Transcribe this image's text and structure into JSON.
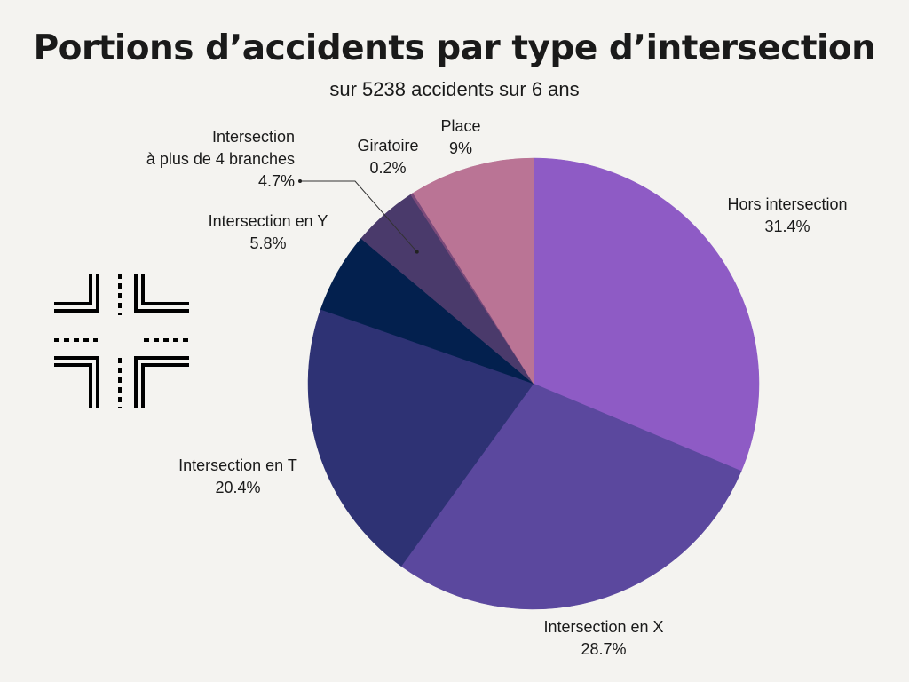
{
  "header": {
    "title": "Portions d’accidents par type d’intersection",
    "subtitle": "sur 5238 accidents sur 6 ans"
  },
  "icon": {
    "name": "intersection-icon"
  },
  "chart_data": {
    "type": "pie",
    "title": "Portions d’accidents par type d’intersection",
    "subtitle": "sur 5238 accidents sur 6 ans",
    "slices": [
      {
        "name": "Hors intersection",
        "value": 31.4,
        "value_label": "31.4%",
        "color": "#8e5bc5"
      },
      {
        "name": "Intersection en X",
        "value": 28.7,
        "value_label": "28.7%",
        "color": "#5b489e"
      },
      {
        "name": "Intersection en T",
        "value": 20.4,
        "value_label": "20.4%",
        "color": "#2e3274"
      },
      {
        "name": "Intersection en Y",
        "value": 5.8,
        "value_label": "5.8%",
        "color": "#03204e"
      },
      {
        "name": "Intersection à plus de 4 branches",
        "label_lines": [
          "Intersection",
          "à plus de 4 branches"
        ],
        "value": 4.7,
        "value_label": "4.7%",
        "color": "#4a3a6b"
      },
      {
        "name": "Giratoire",
        "value": 0.2,
        "value_label": "0.2%",
        "color": "#7a4a7a"
      },
      {
        "name": "Place",
        "value": 9,
        "value_label": "9%",
        "color": "#ba7495"
      }
    ],
    "start": "top",
    "direction": "clockwise"
  }
}
